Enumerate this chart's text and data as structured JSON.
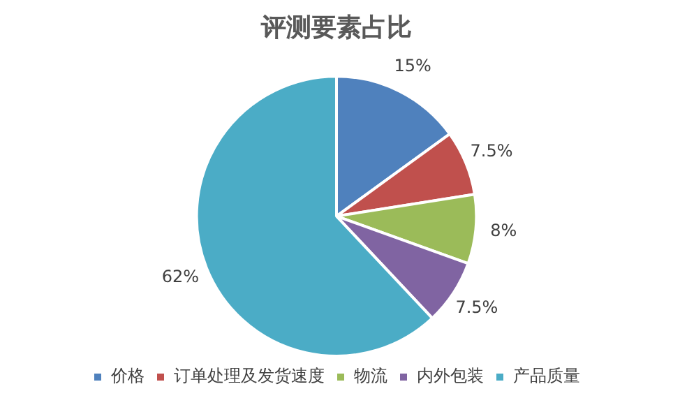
{
  "chart_data": {
    "type": "pie",
    "title": "评测要素占比",
    "categories": [
      "价格",
      "订单处理及发货速度",
      "物流",
      "内外包装",
      "产品质量"
    ],
    "values": [
      15,
      7.5,
      8,
      7.5,
      62
    ],
    "colors": [
      "#4f81bd",
      "#c0504d",
      "#9bbb59",
      "#8064a2",
      "#4bacc6"
    ],
    "value_labels": [
      "15%",
      "7.5%",
      "8%",
      "7.5%",
      "62%"
    ],
    "legend": "bottom"
  }
}
